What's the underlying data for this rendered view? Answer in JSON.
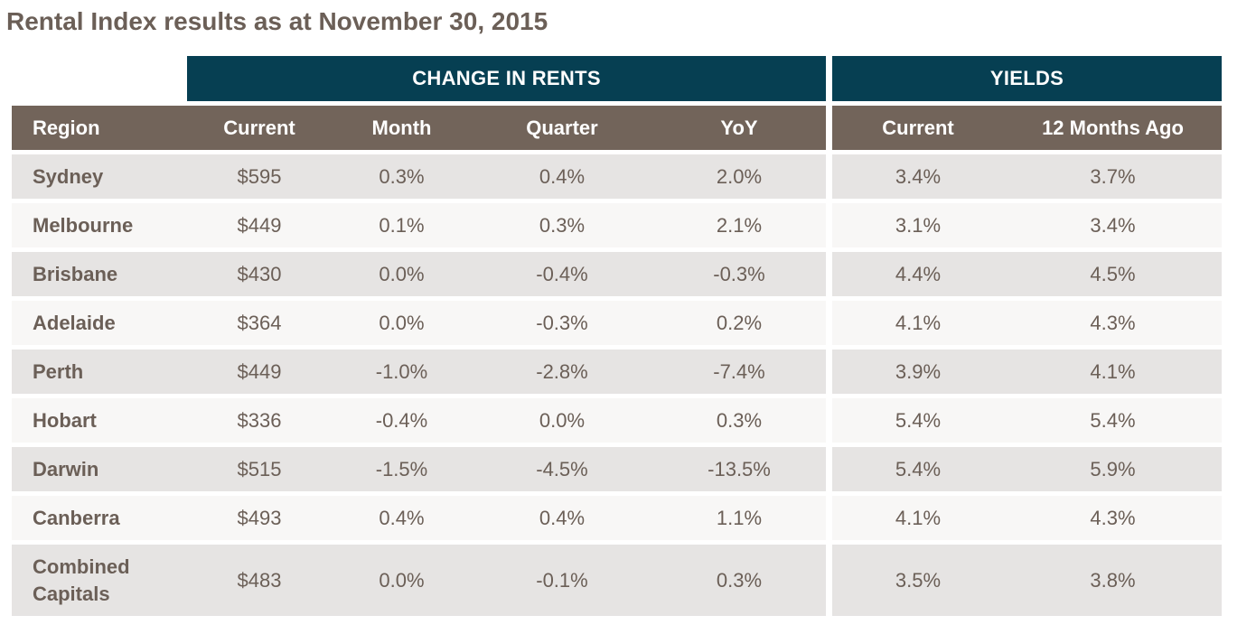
{
  "title": "Rental Index results as at November 30, 2015",
  "group_headers": {
    "change_in_rents": "CHANGE IN RENTS",
    "yields": "YIELDS"
  },
  "columns": {
    "region": "Region",
    "current": "Current",
    "month": "Month",
    "quarter": "Quarter",
    "yoy": "YoY",
    "yield_current": "Current",
    "yield_12m": "12 Months Ago"
  },
  "rows": [
    {
      "region": "Sydney",
      "current": "$595",
      "month": "0.3%",
      "quarter": "0.4%",
      "yoy": "2.0%",
      "yield_current": "3.4%",
      "yield_12m": "3.7%"
    },
    {
      "region": "Melbourne",
      "current": "$449",
      "month": "0.1%",
      "quarter": "0.3%",
      "yoy": "2.1%",
      "yield_current": "3.1%",
      "yield_12m": "3.4%"
    },
    {
      "region": "Brisbane",
      "current": "$430",
      "month": "0.0%",
      "quarter": "-0.4%",
      "yoy": "-0.3%",
      "yield_current": "4.4%",
      "yield_12m": "4.5%"
    },
    {
      "region": "Adelaide",
      "current": "$364",
      "month": "0.0%",
      "quarter": "-0.3%",
      "yoy": "0.2%",
      "yield_current": "4.1%",
      "yield_12m": "4.3%"
    },
    {
      "region": "Perth",
      "current": "$449",
      "month": "-1.0%",
      "quarter": "-2.8%",
      "yoy": "-7.4%",
      "yield_current": "3.9%",
      "yield_12m": "4.1%"
    },
    {
      "region": "Hobart",
      "current": "$336",
      "month": "-0.4%",
      "quarter": "0.0%",
      "yoy": "0.3%",
      "yield_current": "5.4%",
      "yield_12m": "5.4%"
    },
    {
      "region": "Darwin",
      "current": "$515",
      "month": "-1.5%",
      "quarter": "-4.5%",
      "yoy": "-13.5%",
      "yield_current": "5.4%",
      "yield_12m": "5.9%"
    },
    {
      "region": "Canberra",
      "current": "$493",
      "month": "0.4%",
      "quarter": "0.4%",
      "yoy": "1.1%",
      "yield_current": "4.1%",
      "yield_12m": "4.3%"
    },
    {
      "region": "Combined Capitals",
      "current": "$483",
      "month": "0.0%",
      "quarter": "-0.1%",
      "yoy": "0.3%",
      "yield_current": "3.5%",
      "yield_12m": "3.8%"
    }
  ],
  "chart_data": {
    "type": "table",
    "title": "Rental Index results as at November 30, 2015",
    "column_groups": [
      {
        "name": "CHANGE IN RENTS",
        "columns": [
          "Current",
          "Month",
          "Quarter",
          "YoY"
        ]
      },
      {
        "name": "YIELDS",
        "columns": [
          "Current",
          "12 Months Ago"
        ]
      }
    ],
    "columns": [
      "Region",
      "Current",
      "Month",
      "Quarter",
      "YoY",
      "Current",
      "12 Months Ago"
    ],
    "rows": [
      [
        "Sydney",
        "$595",
        "0.3%",
        "0.4%",
        "2.0%",
        "3.4%",
        "3.7%"
      ],
      [
        "Melbourne",
        "$449",
        "0.1%",
        "0.3%",
        "2.1%",
        "3.1%",
        "3.4%"
      ],
      [
        "Brisbane",
        "$430",
        "0.0%",
        "-0.4%",
        "-0.3%",
        "4.4%",
        "4.5%"
      ],
      [
        "Adelaide",
        "$364",
        "0.0%",
        "-0.3%",
        "0.2%",
        "4.1%",
        "4.3%"
      ],
      [
        "Perth",
        "$449",
        "-1.0%",
        "-2.8%",
        "-7.4%",
        "3.9%",
        "4.1%"
      ],
      [
        "Hobart",
        "$336",
        "-0.4%",
        "0.0%",
        "0.3%",
        "5.4%",
        "5.4%"
      ],
      [
        "Darwin",
        "$515",
        "-1.5%",
        "-4.5%",
        "-13.5%",
        "5.4%",
        "5.9%"
      ],
      [
        "Canberra",
        "$493",
        "0.4%",
        "0.4%",
        "1.1%",
        "4.1%",
        "4.3%"
      ],
      [
        "Combined Capitals",
        "$483",
        "0.0%",
        "-0.1%",
        "0.3%",
        "3.5%",
        "3.8%"
      ]
    ]
  },
  "colors": {
    "group_header_bg": "#063f52",
    "column_header_bg": "#72645a",
    "row_odd_bg": "#e6e4e3",
    "row_even_bg": "#f8f7f6",
    "text": "#6b5f57"
  }
}
